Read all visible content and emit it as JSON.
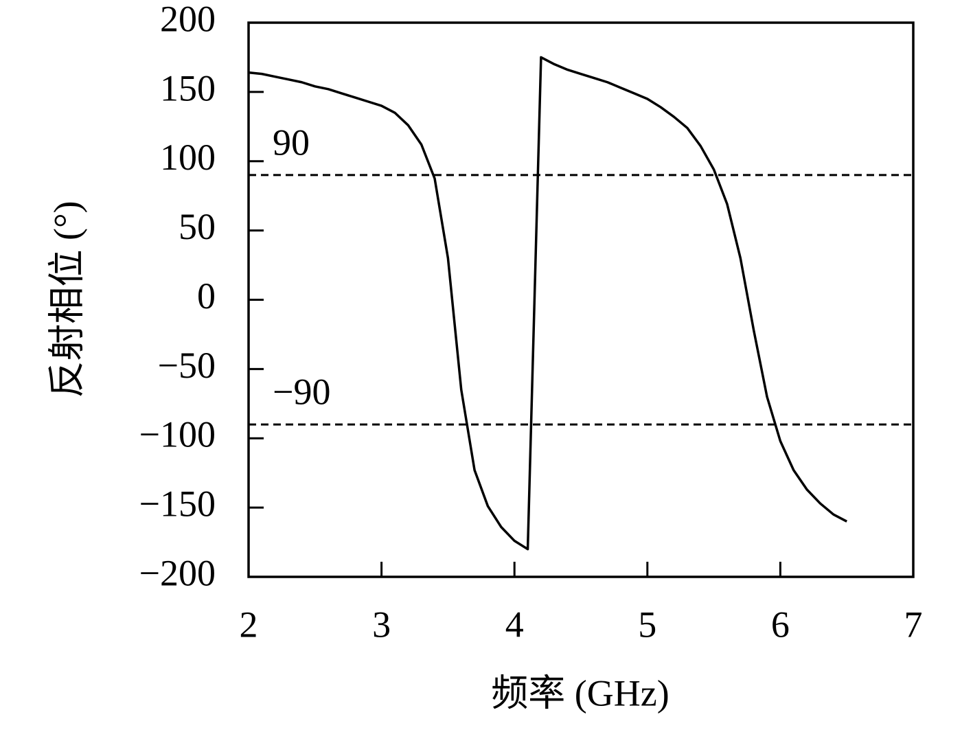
{
  "chart_data": {
    "type": "line",
    "x_label": "频率 (GHz)",
    "y_label": "反射相位 (°)",
    "x": [
      2.0,
      2.1,
      2.2,
      2.3,
      2.4,
      2.5,
      2.6,
      2.7,
      2.8,
      2.9,
      3.0,
      3.1,
      3.2,
      3.3,
      3.4,
      3.5,
      3.6,
      3.7,
      3.8,
      3.9,
      4.0,
      4.1,
      4.2,
      4.3,
      4.4,
      4.5,
      4.6,
      4.7,
      4.8,
      4.9,
      5.0,
      5.1,
      5.2,
      5.3,
      5.4,
      5.5,
      5.6,
      5.7,
      5.8,
      5.9,
      6.0,
      6.1,
      6.2,
      6.3,
      6.4,
      6.5
    ],
    "series": [
      {
        "color": "#000000",
        "values": [
          164,
          163,
          161,
          159,
          157,
          154,
          152,
          149,
          146,
          143,
          140,
          135,
          126,
          112,
          87.5,
          30,
          -65,
          -123,
          -149,
          -164,
          -174,
          -180,
          175,
          170,
          166,
          163,
          160,
          157,
          153,
          149,
          145,
          139,
          132,
          124,
          111,
          94,
          69,
          30,
          -22,
          -70,
          -102,
          -123,
          -137,
          -147,
          -155,
          -160
        ]
      }
    ],
    "xlim": [
      2,
      7
    ],
    "xticks": [
      2,
      3,
      4,
      5,
      6,
      7
    ],
    "ylim": [
      -200,
      200
    ],
    "yticks": [
      {
        "value": -200,
        "label": "−200"
      },
      {
        "value": -150,
        "label": "−150"
      },
      {
        "value": -100,
        "label": "−100"
      },
      {
        "value": -50,
        "label": "−50"
      },
      0,
      50,
      100,
      150,
      200
    ],
    "reference_lines": [
      {
        "value": 90,
        "label": "90"
      },
      {
        "value": -90,
        "label": "−90"
      }
    ]
  }
}
